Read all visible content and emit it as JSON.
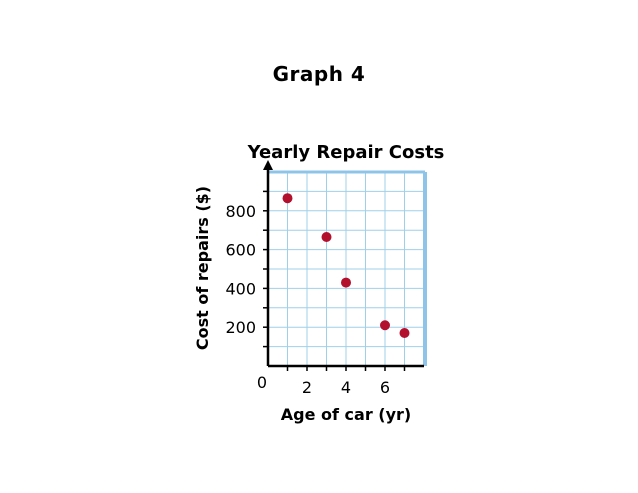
{
  "heading": "Graph 4",
  "colors": {
    "grid": "#9fd0ea",
    "frame": "#8ec4e8",
    "point": "#b3102e",
    "axis": "#000000"
  },
  "chart_data": {
    "type": "scatter",
    "title": "Yearly Repair Costs",
    "xlabel": "Age of car (yr)",
    "ylabel": "Cost of repairs ($)",
    "xlim": [
      0,
      8
    ],
    "ylim": [
      0,
      1000
    ],
    "origin_label": "0",
    "x_ticks": [
      2,
      4,
      6
    ],
    "x_tick_labels": [
      "2",
      "4",
      "6"
    ],
    "y_ticks": [
      200,
      400,
      600,
      800
    ],
    "y_tick_labels": [
      "200",
      "400",
      "600",
      "800"
    ],
    "grid": true,
    "points": [
      {
        "x": 1,
        "y": 865
      },
      {
        "x": 3,
        "y": 665
      },
      {
        "x": 4,
        "y": 430
      },
      {
        "x": 6,
        "y": 210
      },
      {
        "x": 7,
        "y": 170
      }
    ]
  }
}
